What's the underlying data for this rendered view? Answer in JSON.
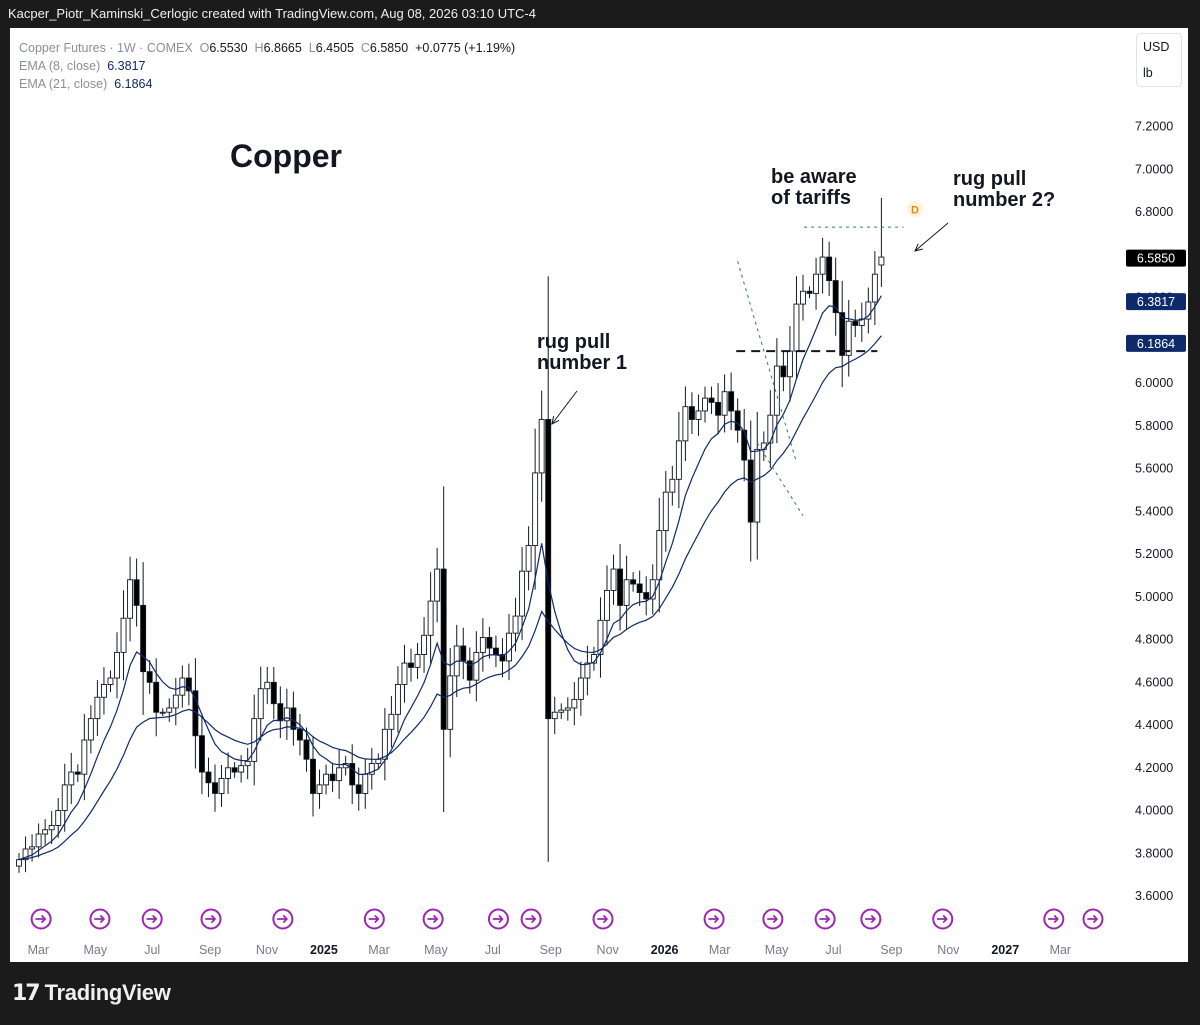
{
  "header": {
    "attribution": "Kacper_Piotr_Kaminski_Cerlogic created with TradingView.com, Aug 08, 2026 03:10 UTC-4"
  },
  "legend": {
    "symbol": "Copper Futures · 1W · COMEX",
    "open_key": "O",
    "open": "6.5530",
    "high_key": "H",
    "high": "6.8665",
    "low_key": "L",
    "low": "6.4505",
    "close_key": "C",
    "close": "6.5850",
    "change": "+0.0775 (+1.19%)",
    "ema8_label": "EMA (8, close)",
    "ema8_value": "6.3817",
    "ema21_label": "EMA (21, close)",
    "ema21_value": "6.1864"
  },
  "units": {
    "currency": "USD",
    "unit": "lb"
  },
  "footer": {
    "brand": "TradingView"
  },
  "annotations": {
    "title": "Copper",
    "rug1_line1": "rug pull",
    "rug1_line2": "number 1",
    "tariffs_line1": "be aware",
    "tariffs_line2": "of tariffs",
    "rug2_line1": "rug pull",
    "rug2_line2": "number 2?",
    "dividend_marker": "D"
  },
  "colors": {
    "up_body": "#ffffff",
    "down_body": "#000000",
    "ema": "#0e2a6b",
    "ema_tag": "#0e2a6b",
    "close_tag": "#000000",
    "event_icon": "#9c27b0",
    "trendline": "#2e7d5b"
  },
  "chart_data": {
    "type": "candlestick",
    "title": "Copper",
    "symbol": "Copper Futures, 1W, COMEX",
    "ylim": [
      3.6,
      7.4
    ],
    "yticks": [
      3.6,
      3.8,
      4.0,
      4.2,
      4.4,
      4.6,
      4.8,
      5.0,
      5.2,
      5.4,
      5.6,
      5.8,
      6.0,
      6.2,
      6.4,
      6.6,
      6.8,
      7.0,
      7.2
    ],
    "ytick_labels": [
      "3.6000",
      "3.8000",
      "4.0000",
      "4.2000",
      "4.4000",
      "4.6000",
      "4.8000",
      "5.0000",
      "5.2000",
      "5.4000",
      "5.6000",
      "5.8000",
      "6.0000",
      "6.2000",
      "6.4000",
      "6.6000",
      "6.8000",
      "7.0000",
      "7.2000"
    ],
    "x_start": "2024-02-05",
    "x_end": "2027-04-05",
    "xticks": [
      {
        "label": "Mar",
        "date": "2024-03-01",
        "bold": false
      },
      {
        "label": "May",
        "date": "2024-05-01",
        "bold": false
      },
      {
        "label": "Jul",
        "date": "2024-07-01",
        "bold": false
      },
      {
        "label": "Sep",
        "date": "2024-09-01",
        "bold": false
      },
      {
        "label": "Nov",
        "date": "2024-11-01",
        "bold": false
      },
      {
        "label": "2025",
        "date": "2025-01-01",
        "bold": true
      },
      {
        "label": "Mar",
        "date": "2025-03-01",
        "bold": false
      },
      {
        "label": "May",
        "date": "2025-05-01",
        "bold": false
      },
      {
        "label": "Jul",
        "date": "2025-07-01",
        "bold": false
      },
      {
        "label": "Sep",
        "date": "2025-09-01",
        "bold": false
      },
      {
        "label": "Nov",
        "date": "2025-11-01",
        "bold": false
      },
      {
        "label": "2026",
        "date": "2026-01-01",
        "bold": true
      },
      {
        "label": "Mar",
        "date": "2026-03-01",
        "bold": false
      },
      {
        "label": "May",
        "date": "2026-05-01",
        "bold": false
      },
      {
        "label": "Jul",
        "date": "2026-07-01",
        "bold": false
      },
      {
        "label": "Sep",
        "date": "2026-09-01",
        "bold": false
      },
      {
        "label": "Nov",
        "date": "2026-11-01",
        "bold": false
      },
      {
        "label": "2027",
        "date": "2027-01-01",
        "bold": true
      },
      {
        "label": "Mar",
        "date": "2027-03-01",
        "bold": false
      }
    ],
    "price_tags": [
      {
        "value": 6.585,
        "label": "6.5850",
        "kind": "close"
      },
      {
        "value": 6.3817,
        "label": "6.3817",
        "kind": "ema"
      },
      {
        "value": 6.1864,
        "label": "6.1864",
        "kind": "ema"
      }
    ],
    "closes": [
      3.77,
      3.82,
      3.83,
      3.89,
      3.91,
      3.93,
      4.0,
      4.12,
      4.18,
      4.17,
      4.33,
      4.43,
      4.53,
      4.59,
      4.62,
      4.74,
      4.9,
      5.08,
      4.96,
      4.65,
      4.6,
      4.46,
      4.46,
      4.48,
      4.54,
      4.62,
      4.56,
      4.35,
      4.18,
      4.13,
      4.08,
      4.15,
      4.2,
      4.18,
      4.21,
      4.23,
      4.43,
      4.57,
      4.6,
      4.5,
      4.42,
      4.48,
      4.38,
      4.33,
      4.24,
      4.08,
      4.12,
      4.17,
      4.14,
      4.2,
      4.22,
      4.12,
      4.08,
      4.17,
      4.22,
      4.24,
      4.38,
      4.45,
      4.59,
      4.69,
      4.67,
      4.73,
      4.82,
      4.98,
      5.13,
      4.38,
      4.63,
      4.77,
      4.7,
      4.61,
      4.74,
      4.81,
      4.76,
      4.73,
      4.7,
      4.83,
      4.91,
      5.12,
      5.24,
      5.58,
      5.83,
      4.43,
      4.46,
      4.47,
      4.48,
      4.52,
      4.62,
      4.69,
      4.73,
      4.89,
      5.03,
      5.13,
      4.96,
      5.08,
      5.06,
      5.02,
      4.99,
      5.08,
      5.31,
      5.49,
      5.55,
      5.73,
      5.89,
      5.83,
      5.87,
      5.93,
      5.91,
      5.85,
      5.96,
      5.87,
      5.78,
      5.64,
      5.35,
      5.69,
      5.72,
      5.85,
      6.08,
      6.03,
      6.15,
      6.37,
      6.43,
      6.42,
      6.51,
      6.59,
      6.48,
      6.33,
      6.13,
      6.29,
      6.27,
      6.3,
      6.38,
      6.51,
      6.59
    ],
    "ema8_close": 6.3817,
    "ema21_close": 6.1864,
    "events_x": [
      "2024-03-04",
      "2024-05-06",
      "2024-07-01",
      "2024-09-02",
      "2024-11-18",
      "2025-02-24",
      "2025-04-28",
      "2025-07-07",
      "2025-08-11",
      "2025-10-27",
      "2026-02-23",
      "2026-04-27",
      "2026-06-22",
      "2026-08-10",
      "2026-10-26",
      "2027-02-22",
      "2027-04-05"
    ]
  }
}
